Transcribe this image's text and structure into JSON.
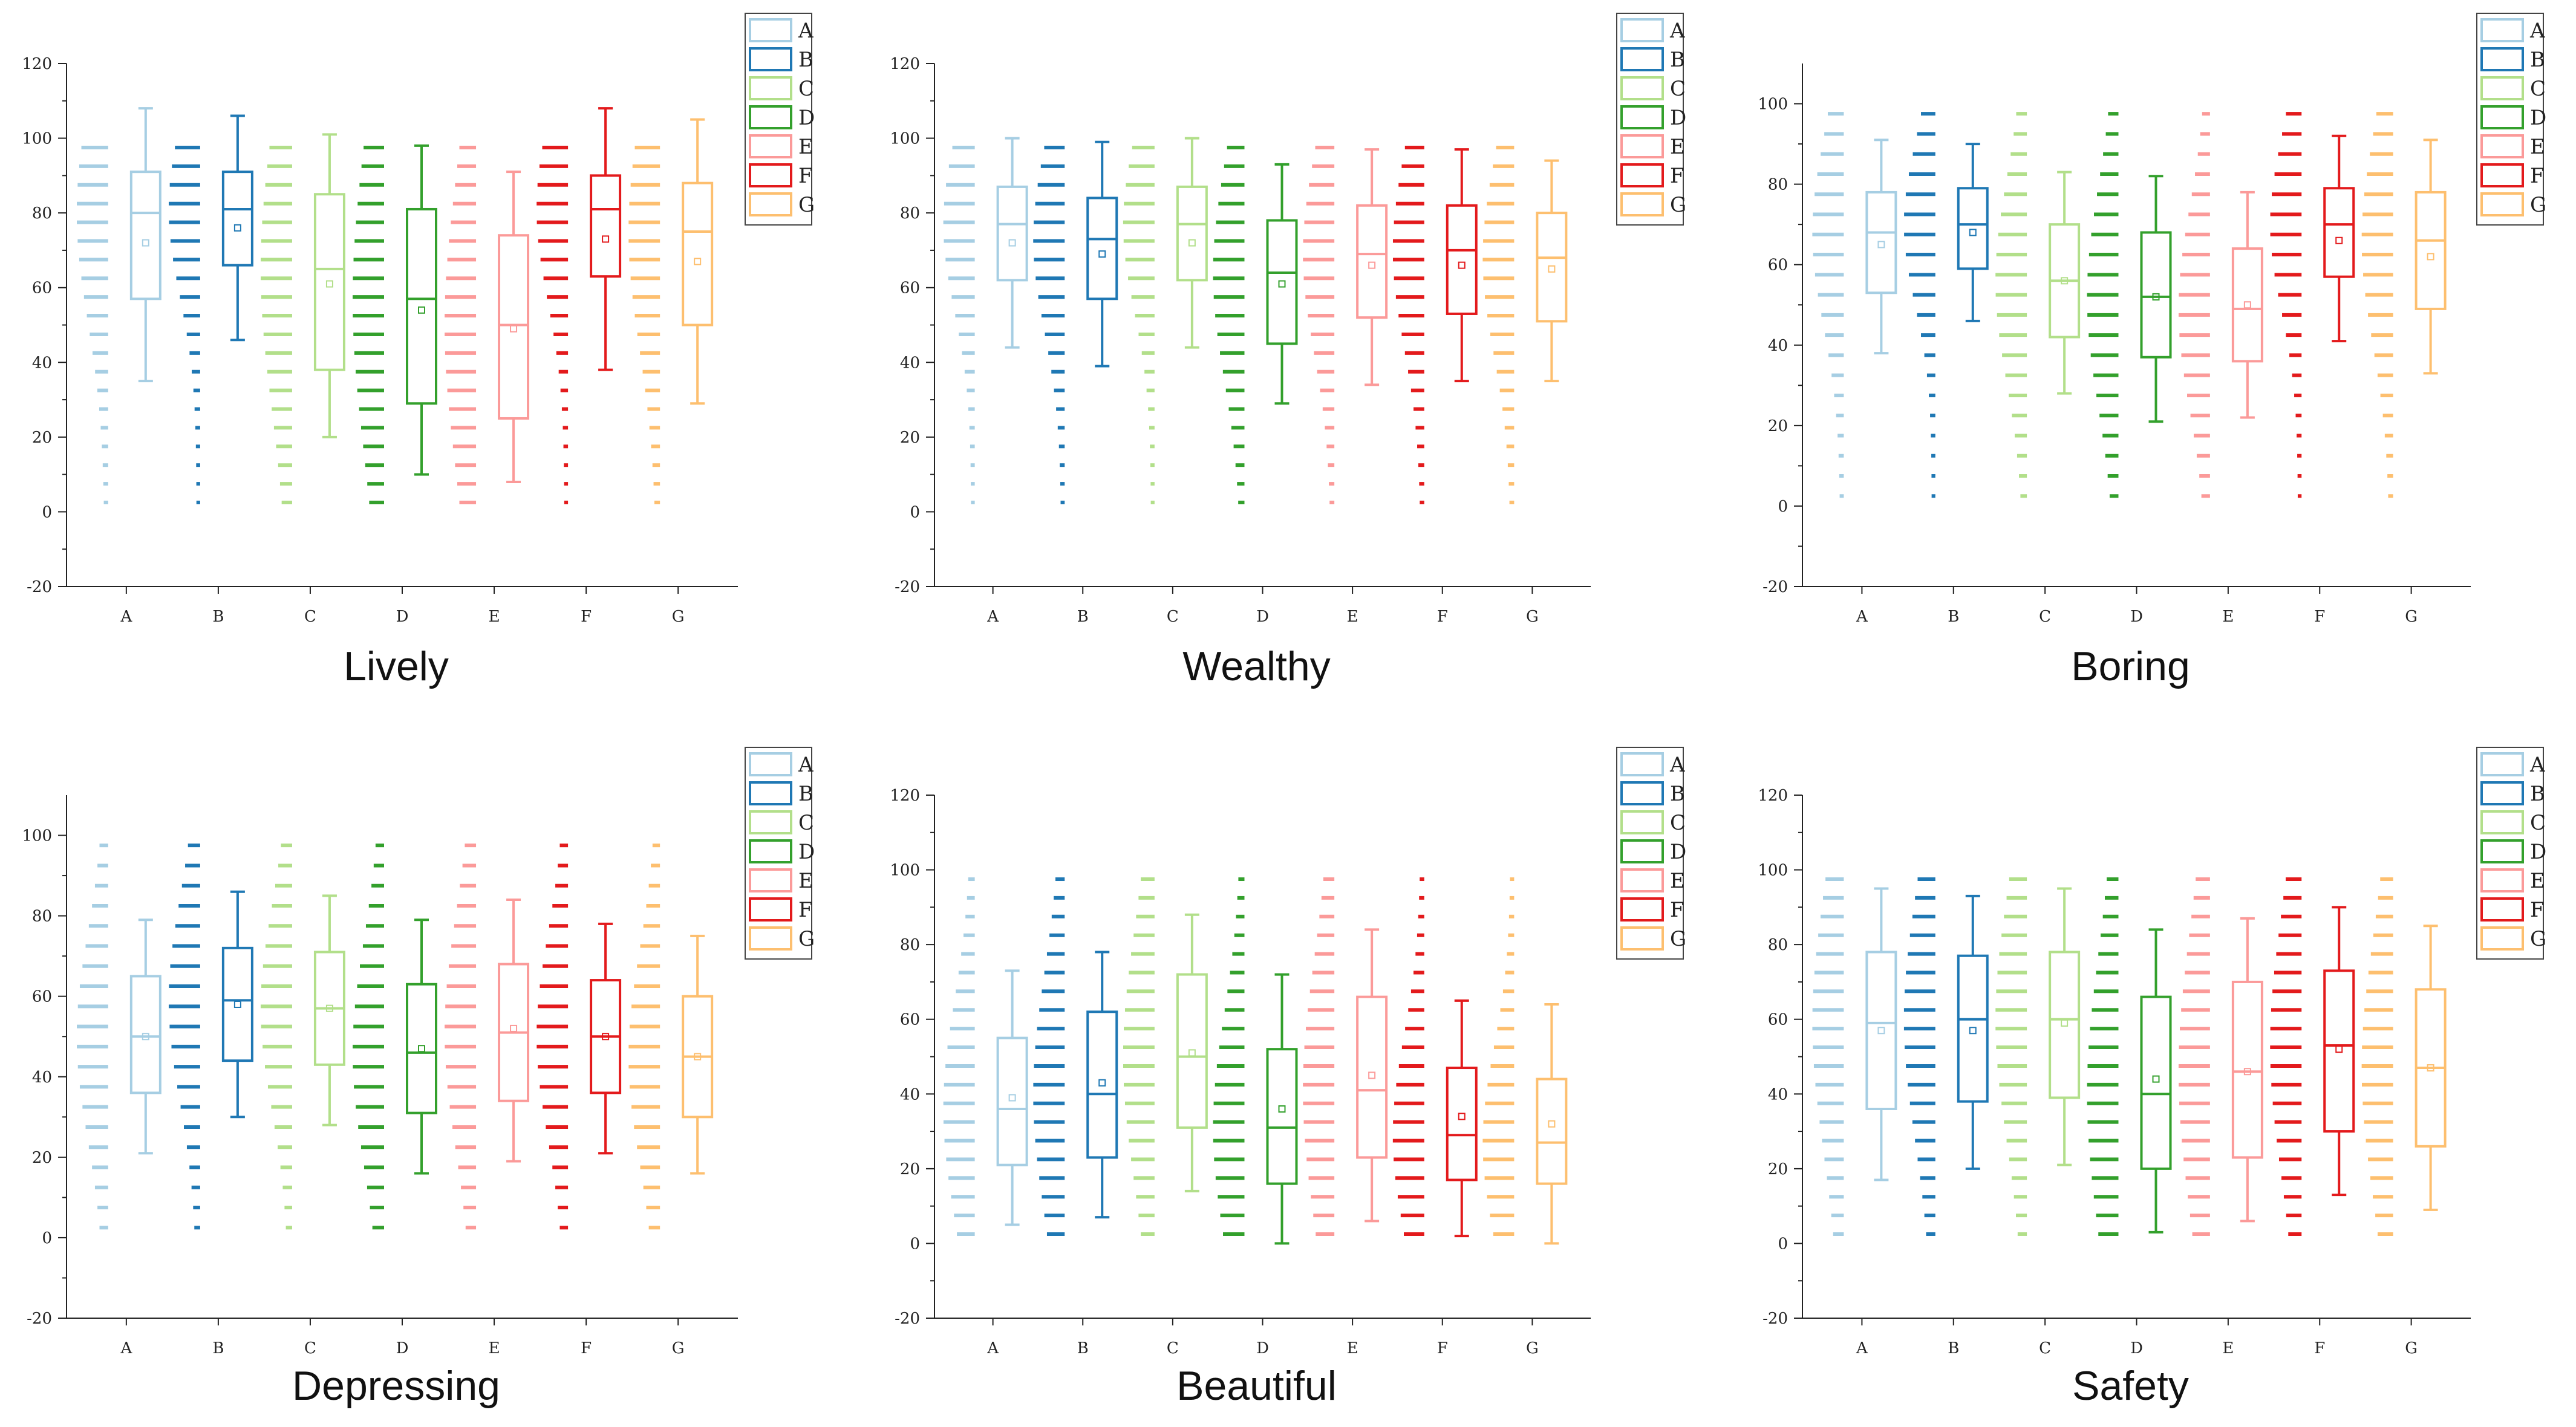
{
  "chart_data": [
    {
      "type": "box",
      "title": "Lively",
      "categories": [
        "A",
        "B",
        "C",
        "D",
        "E",
        "F",
        "G"
      ],
      "ylim": [
        -20,
        120
      ],
      "yticks": [
        -20,
        0,
        20,
        40,
        60,
        80,
        100,
        120
      ],
      "legend": [
        "A",
        "B",
        "C",
        "D",
        "E",
        "F",
        "G"
      ],
      "legend_position": "top-right",
      "series": [
        {
          "name": "A",
          "whisker_low": 35,
          "q1": 57,
          "median": 80,
          "q3": 91,
          "whisker_high": 108,
          "mean": 72,
          "max_count": 6
        },
        {
          "name": "B",
          "whisker_low": 46,
          "q1": 66,
          "median": 81,
          "q3": 91,
          "whisker_high": 106,
          "mean": 76,
          "max_count": 6
        },
        {
          "name": "C",
          "whisker_low": 20,
          "q1": 38,
          "median": 65,
          "q3": 85,
          "whisker_high": 101,
          "mean": 61,
          "max_count": 6
        },
        {
          "name": "D",
          "whisker_low": 10,
          "q1": 29,
          "median": 57,
          "q3": 81,
          "whisker_high": 98,
          "mean": 54,
          "max_count": 6
        },
        {
          "name": "E",
          "whisker_low": 8,
          "q1": 25,
          "median": 50,
          "q3": 74,
          "whisker_high": 91,
          "mean": 49,
          "max_count": 6
        },
        {
          "name": "F",
          "whisker_low": 38,
          "q1": 63,
          "median": 81,
          "q3": 90,
          "whisker_high": 108,
          "mean": 73,
          "max_count": 6
        },
        {
          "name": "G",
          "whisker_low": 29,
          "q1": 50,
          "median": 75,
          "q3": 88,
          "whisker_high": 105,
          "mean": 67,
          "max_count": 6
        }
      ]
    },
    {
      "type": "box",
      "title": "Wealthy",
      "categories": [
        "A",
        "B",
        "C",
        "D",
        "E",
        "F",
        "G"
      ],
      "ylim": [
        -20,
        120
      ],
      "yticks": [
        -20,
        0,
        20,
        40,
        60,
        80,
        100,
        120
      ],
      "legend": [
        "A",
        "B",
        "C",
        "D",
        "E",
        "F",
        "G"
      ],
      "legend_position": "top-right",
      "series": [
        {
          "name": "A",
          "whisker_low": 44,
          "q1": 62,
          "median": 77,
          "q3": 87,
          "whisker_high": 100,
          "mean": 72,
          "max_count": 6
        },
        {
          "name": "B",
          "whisker_low": 39,
          "q1": 57,
          "median": 73,
          "q3": 84,
          "whisker_high": 99,
          "mean": 69,
          "max_count": 6
        },
        {
          "name": "C",
          "whisker_low": 44,
          "q1": 62,
          "median": 77,
          "q3": 87,
          "whisker_high": 100,
          "mean": 72,
          "max_count": 6
        },
        {
          "name": "D",
          "whisker_low": 29,
          "q1": 45,
          "median": 64,
          "q3": 78,
          "whisker_high": 93,
          "mean": 61,
          "max_count": 6
        },
        {
          "name": "E",
          "whisker_low": 34,
          "q1": 52,
          "median": 69,
          "q3": 82,
          "whisker_high": 97,
          "mean": 66,
          "max_count": 6
        },
        {
          "name": "F",
          "whisker_low": 35,
          "q1": 53,
          "median": 70,
          "q3": 82,
          "whisker_high": 97,
          "mean": 66,
          "max_count": 6
        },
        {
          "name": "G",
          "whisker_low": 35,
          "q1": 51,
          "median": 68,
          "q3": 80,
          "whisker_high": 94,
          "mean": 65,
          "max_count": 6
        }
      ]
    },
    {
      "type": "box",
      "title": "Boring",
      "categories": [
        "A",
        "B",
        "C",
        "D",
        "E",
        "F",
        "G"
      ],
      "ylim": [
        -20,
        110
      ],
      "yticks": [
        -20,
        0,
        20,
        40,
        60,
        80,
        100
      ],
      "legend": [
        "A",
        "B",
        "C",
        "D",
        "E",
        "F",
        "G"
      ],
      "legend_position": "top-right",
      "series": [
        {
          "name": "A",
          "whisker_low": 38,
          "q1": 53,
          "median": 68,
          "q3": 78,
          "whisker_high": 91,
          "mean": 65,
          "max_count": 6
        },
        {
          "name": "B",
          "whisker_low": 46,
          "q1": 59,
          "median": 70,
          "q3": 79,
          "whisker_high": 90,
          "mean": 68,
          "max_count": 6
        },
        {
          "name": "C",
          "whisker_low": 28,
          "q1": 42,
          "median": 56,
          "q3": 70,
          "whisker_high": 83,
          "mean": 56,
          "max_count": 6
        },
        {
          "name": "D",
          "whisker_low": 21,
          "q1": 37,
          "median": 52,
          "q3": 68,
          "whisker_high": 82,
          "mean": 52,
          "max_count": 6
        },
        {
          "name": "E",
          "whisker_low": 22,
          "q1": 36,
          "median": 49,
          "q3": 64,
          "whisker_high": 78,
          "mean": 50,
          "max_count": 6
        },
        {
          "name": "F",
          "whisker_low": 41,
          "q1": 57,
          "median": 70,
          "q3": 79,
          "whisker_high": 92,
          "mean": 66,
          "max_count": 6
        },
        {
          "name": "G",
          "whisker_low": 33,
          "q1": 49,
          "median": 66,
          "q3": 78,
          "whisker_high": 91,
          "mean": 62,
          "max_count": 6
        }
      ]
    },
    {
      "type": "box",
      "title": "Depressing",
      "categories": [
        "A",
        "B",
        "C",
        "D",
        "E",
        "F",
        "G"
      ],
      "ylim": [
        -20,
        110
      ],
      "yticks": [
        -20,
        0,
        20,
        40,
        60,
        80,
        100
      ],
      "legend": [
        "A",
        "B",
        "C",
        "D",
        "E",
        "F",
        "G"
      ],
      "legend_position": "top-right",
      "series": [
        {
          "name": "A",
          "whisker_low": 21,
          "q1": 36,
          "median": 50,
          "q3": 65,
          "whisker_high": 79,
          "mean": 50,
          "max_count": 6
        },
        {
          "name": "B",
          "whisker_low": 30,
          "q1": 44,
          "median": 59,
          "q3": 72,
          "whisker_high": 86,
          "mean": 58,
          "max_count": 6
        },
        {
          "name": "C",
          "whisker_low": 28,
          "q1": 43,
          "median": 57,
          "q3": 71,
          "whisker_high": 85,
          "mean": 57,
          "max_count": 6
        },
        {
          "name": "D",
          "whisker_low": 16,
          "q1": 31,
          "median": 46,
          "q3": 63,
          "whisker_high": 79,
          "mean": 47,
          "max_count": 6
        },
        {
          "name": "E",
          "whisker_low": 19,
          "q1": 34,
          "median": 51,
          "q3": 68,
          "whisker_high": 84,
          "mean": 52,
          "max_count": 6
        },
        {
          "name": "F",
          "whisker_low": 21,
          "q1": 36,
          "median": 50,
          "q3": 64,
          "whisker_high": 78,
          "mean": 50,
          "max_count": 6
        },
        {
          "name": "G",
          "whisker_low": 16,
          "q1": 30,
          "median": 45,
          "q3": 60,
          "whisker_high": 75,
          "mean": 45,
          "max_count": 6
        }
      ]
    },
    {
      "type": "box",
      "title": "Beautiful",
      "categories": [
        "A",
        "B",
        "C",
        "D",
        "E",
        "F",
        "G"
      ],
      "ylim": [
        -20,
        120
      ],
      "yticks": [
        -20,
        0,
        20,
        40,
        60,
        80,
        100,
        120
      ],
      "legend": [
        "A",
        "B",
        "C",
        "D",
        "E",
        "F",
        "G"
      ],
      "legend_position": "top-right",
      "series": [
        {
          "name": "A",
          "whisker_low": 5,
          "q1": 21,
          "median": 36,
          "q3": 55,
          "whisker_high": 73,
          "mean": 39,
          "max_count": 6
        },
        {
          "name": "B",
          "whisker_low": 7,
          "q1": 23,
          "median": 40,
          "q3": 62,
          "whisker_high": 78,
          "mean": 43,
          "max_count": 6
        },
        {
          "name": "C",
          "whisker_low": 14,
          "q1": 31,
          "median": 50,
          "q3": 72,
          "whisker_high": 88,
          "mean": 51,
          "max_count": 6
        },
        {
          "name": "D",
          "whisker_low": 0,
          "q1": 16,
          "median": 31,
          "q3": 52,
          "whisker_high": 72,
          "mean": 36,
          "max_count": 6
        },
        {
          "name": "E",
          "whisker_low": 6,
          "q1": 23,
          "median": 41,
          "q3": 66,
          "whisker_high": 84,
          "mean": 45,
          "max_count": 6
        },
        {
          "name": "F",
          "whisker_low": 2,
          "q1": 17,
          "median": 29,
          "q3": 47,
          "whisker_high": 65,
          "mean": 34,
          "max_count": 6
        },
        {
          "name": "G",
          "whisker_low": 0,
          "q1": 16,
          "median": 27,
          "q3": 44,
          "whisker_high": 64,
          "mean": 32,
          "max_count": 6
        }
      ]
    },
    {
      "type": "box",
      "title": "Safety",
      "categories": [
        "A",
        "B",
        "C",
        "D",
        "E",
        "F",
        "G"
      ],
      "ylim": [
        -20,
        120
      ],
      "yticks": [
        -20,
        0,
        20,
        40,
        60,
        80,
        100,
        120
      ],
      "legend": [
        "A",
        "B",
        "C",
        "D",
        "E",
        "F",
        "G"
      ],
      "legend_position": "top-right",
      "series": [
        {
          "name": "A",
          "whisker_low": 17,
          "q1": 36,
          "median": 59,
          "q3": 78,
          "whisker_high": 95,
          "mean": 57,
          "max_count": 6
        },
        {
          "name": "B",
          "whisker_low": 20,
          "q1": 38,
          "median": 60,
          "q3": 77,
          "whisker_high": 93,
          "mean": 57,
          "max_count": 6
        },
        {
          "name": "C",
          "whisker_low": 21,
          "q1": 39,
          "median": 60,
          "q3": 78,
          "whisker_high": 95,
          "mean": 59,
          "max_count": 6
        },
        {
          "name": "D",
          "whisker_low": 3,
          "q1": 20,
          "median": 40,
          "q3": 66,
          "whisker_high": 84,
          "mean": 44,
          "max_count": 6
        },
        {
          "name": "E",
          "whisker_low": 6,
          "q1": 23,
          "median": 46,
          "q3": 70,
          "whisker_high": 87,
          "mean": 46,
          "max_count": 6
        },
        {
          "name": "F",
          "whisker_low": 13,
          "q1": 30,
          "median": 53,
          "q3": 73,
          "whisker_high": 90,
          "mean": 52,
          "max_count": 6
        },
        {
          "name": "G",
          "whisker_low": 9,
          "q1": 26,
          "median": 47,
          "q3": 68,
          "whisker_high": 85,
          "mean": 47,
          "max_count": 6
        }
      ]
    }
  ],
  "colors": {
    "A": "#a6cee3",
    "B": "#1f78b4",
    "C": "#b2df8a",
    "D": "#33a02c",
    "E": "#fb9a99",
    "F": "#e31a1c",
    "G": "#fdbf6f"
  }
}
